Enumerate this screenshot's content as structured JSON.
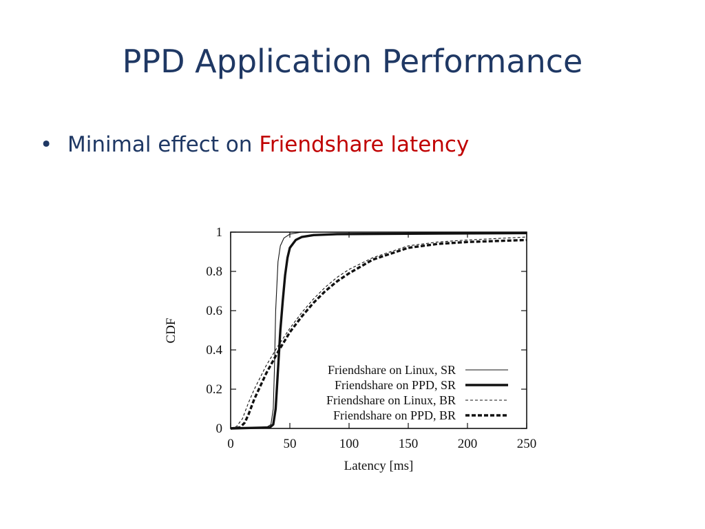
{
  "slide": {
    "title": "PPD Application Performance",
    "bullet_marker": "•",
    "bullet_prefix": "Minimal effect on ",
    "bullet_highlight": "Friendshare latency",
    "title_color": "#1f3864",
    "highlight_color": "#c00000"
  },
  "chart_data": {
    "type": "line",
    "title": "",
    "xlabel": "Latency [ms]",
    "ylabel": "CDF",
    "xlim": [
      0,
      250
    ],
    "ylim": [
      0,
      1
    ],
    "xticks": [
      0,
      50,
      100,
      150,
      200,
      250
    ],
    "yticks": [
      0,
      0.2,
      0.4,
      0.6,
      0.8,
      1
    ],
    "ytick_labels": [
      "0",
      "0.2",
      "0.4",
      "0.6",
      "0.8",
      "1"
    ],
    "grid": false,
    "legend_position": "bottom-right",
    "series": [
      {
        "name": "Friendshare on Linux, SR",
        "style": "thin-solid",
        "x": [
          0,
          30,
          34,
          36,
          37,
          38,
          40,
          42,
          45,
          50,
          60,
          80,
          250
        ],
        "y": [
          0,
          0.005,
          0.02,
          0.1,
          0.3,
          0.6,
          0.85,
          0.93,
          0.97,
          0.99,
          1,
          1,
          1
        ]
      },
      {
        "name": "Friendshare on PPD, SR",
        "style": "thick-solid",
        "x": [
          0,
          33,
          36,
          38,
          40,
          42,
          44,
          46,
          48,
          50,
          55,
          60,
          70,
          90,
          250
        ],
        "y": [
          0,
          0.005,
          0.02,
          0.1,
          0.3,
          0.5,
          0.65,
          0.78,
          0.87,
          0.92,
          0.96,
          0.975,
          0.985,
          0.99,
          0.995
        ]
      },
      {
        "name": "Friendshare on Linux, BR",
        "style": "thin-dashed",
        "x": [
          0,
          5,
          10,
          15,
          20,
          30,
          40,
          50,
          60,
          70,
          80,
          90,
          100,
          120,
          150,
          175,
          200,
          250
        ],
        "y": [
          0,
          0.01,
          0.05,
          0.13,
          0.2,
          0.32,
          0.42,
          0.51,
          0.59,
          0.66,
          0.72,
          0.77,
          0.81,
          0.87,
          0.93,
          0.95,
          0.96,
          0.975
        ]
      },
      {
        "name": "Friendshare on PPD, BR",
        "style": "thick-dashed",
        "x": [
          0,
          8,
          12,
          15,
          20,
          30,
          40,
          50,
          60,
          70,
          80,
          90,
          100,
          120,
          150,
          175,
          200,
          250
        ],
        "y": [
          0,
          0.005,
          0.03,
          0.07,
          0.15,
          0.28,
          0.39,
          0.49,
          0.57,
          0.64,
          0.7,
          0.75,
          0.79,
          0.86,
          0.92,
          0.94,
          0.95,
          0.96
        ]
      }
    ]
  }
}
